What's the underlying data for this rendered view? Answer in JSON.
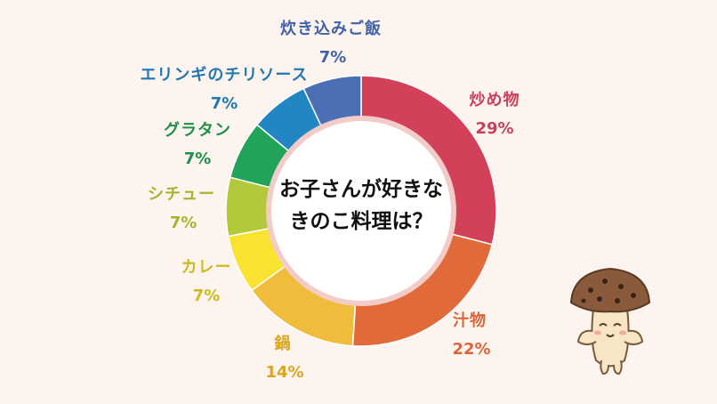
{
  "chart_data": {
    "type": "donut",
    "title": "お子さんが好きなきのこ料理は？",
    "title_lines": [
      "お子さんが好きな",
      "きのこ料理は？"
    ],
    "categories": [
      "炒め物",
      "汁物",
      "鍋",
      "カレー",
      "シチュー",
      "グラタン",
      "エリンギのチリソース",
      "炊き込みご飯"
    ],
    "values": [
      29,
      22,
      14,
      7,
      7,
      7,
      7,
      7
    ],
    "value_labels": [
      "29%",
      "22%",
      "14%",
      "7%",
      "7%",
      "7%",
      "7%",
      "7%"
    ],
    "colors": [
      "#d2405a",
      "#e06a3a",
      "#f0bc3c",
      "#fae330",
      "#b4c83c",
      "#22a35a",
      "#2286c3",
      "#4a6fb5"
    ],
    "label_colors": [
      "#c8405a",
      "#d9663a",
      "#d9a61e",
      "#cbbb1e",
      "#a3b52e",
      "#1f8f4a",
      "#1f78b0",
      "#3f62a8"
    ],
    "start_angle_deg": 0,
    "direction": "clockwise"
  },
  "decoration": {
    "mascot_icon": "mushroom-character-icon"
  }
}
